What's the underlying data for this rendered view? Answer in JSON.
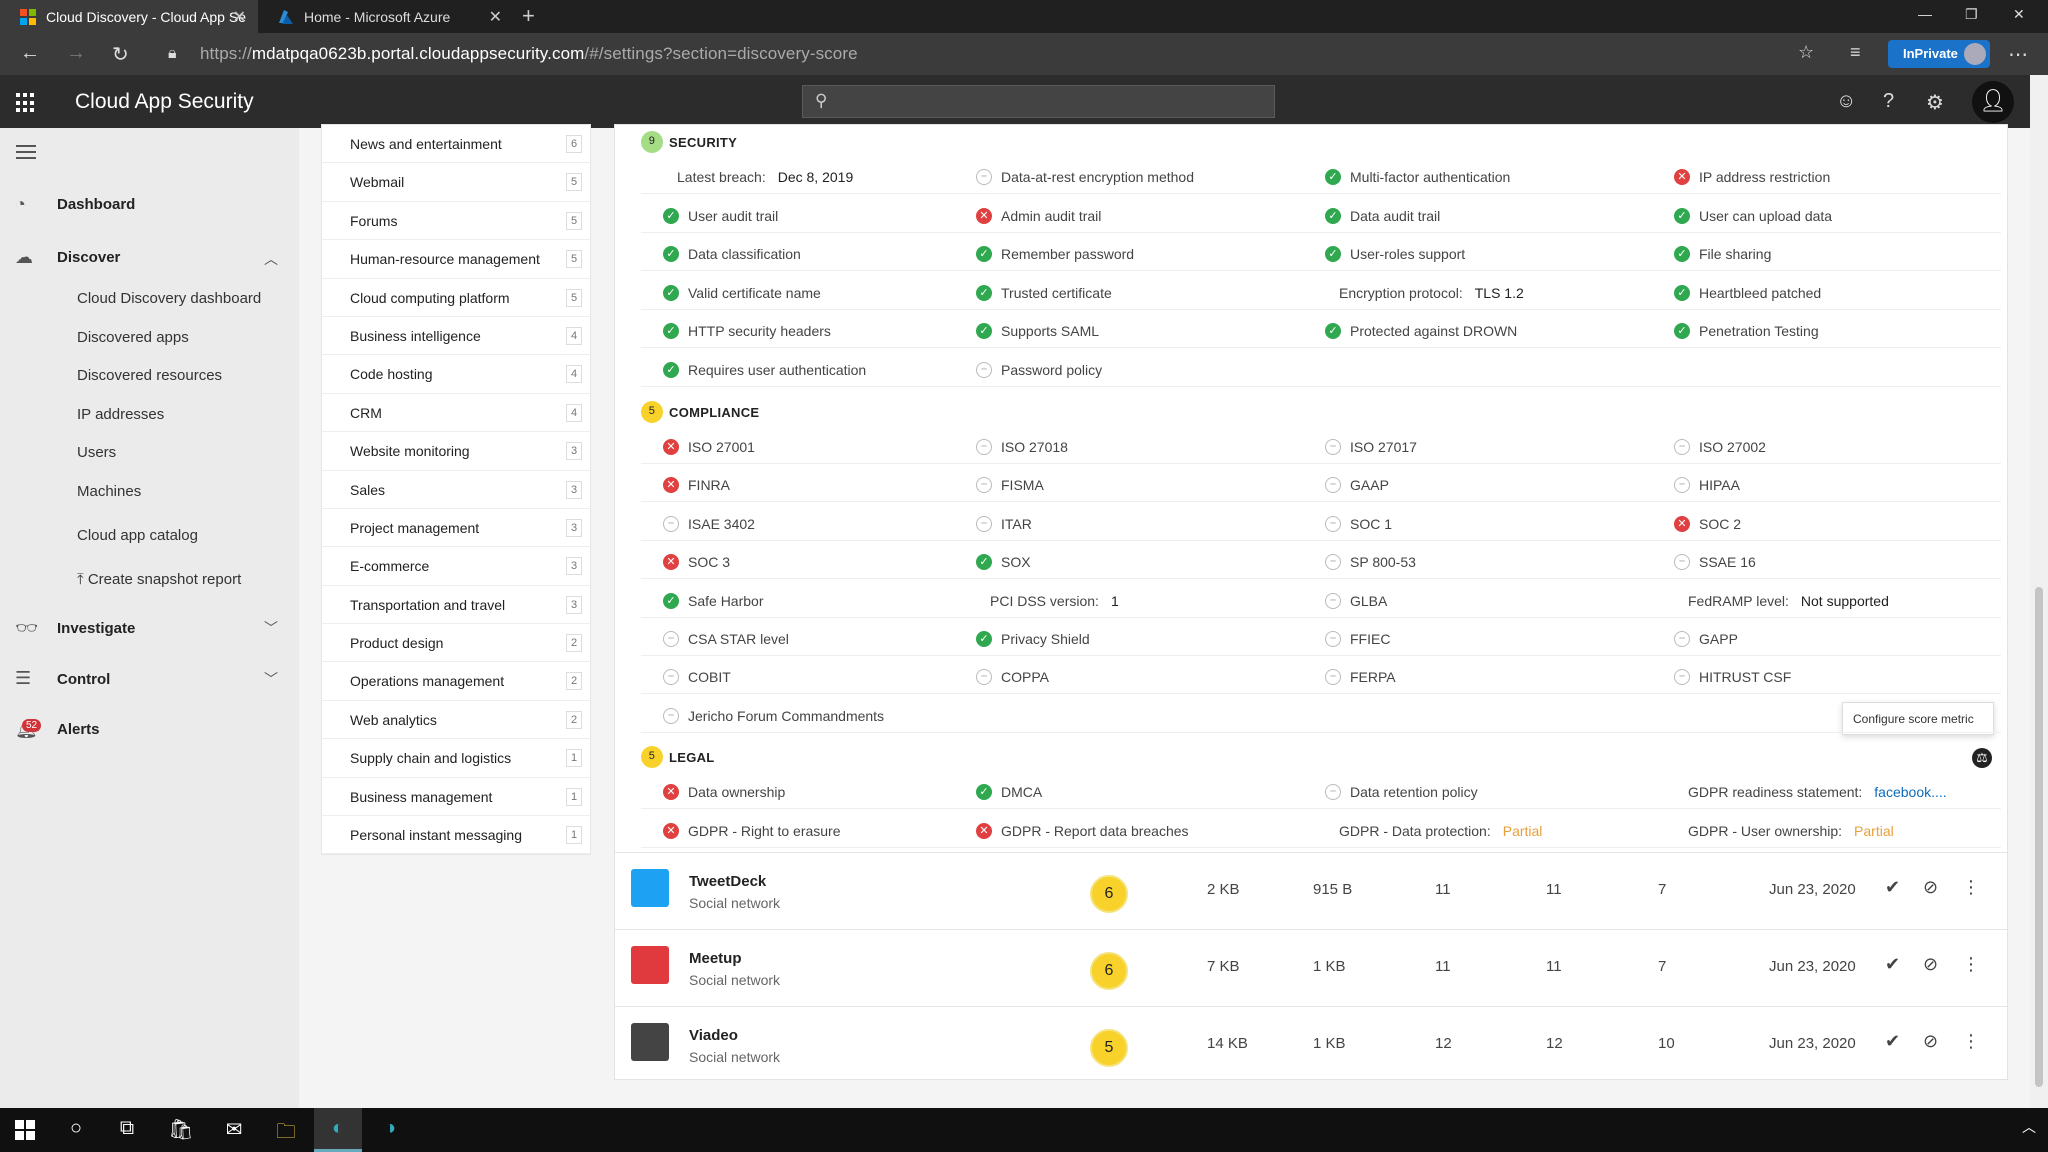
{
  "browser": {
    "tabs": [
      {
        "title": "Cloud Discovery - Cloud App Se",
        "active": true
      },
      {
        "title": "Home - Microsoft Azure",
        "active": false
      }
    ],
    "url_prefix": "https://",
    "url_main": "mdatpqa0623b.portal.cloudappsecurity.com",
    "url_rest": "/#/settings?section=discovery-score",
    "inprivate": "InPrivate"
  },
  "app": {
    "title": "Cloud App Security"
  },
  "leftnav": {
    "dashboard": "Dashboard",
    "discover": "Discover",
    "discover_items": [
      "Cloud Discovery dashboard",
      "Discovered apps",
      "Discovered resources",
      "IP addresses",
      "Users",
      "Machines",
      "Cloud app catalog",
      "Create snapshot report"
    ],
    "investigate": "Investigate",
    "control": "Control",
    "alerts": "Alerts",
    "alerts_count": "52"
  },
  "categories": [
    {
      "name": "News and entertainment",
      "count": "6"
    },
    {
      "name": "Webmail",
      "count": "5"
    },
    {
      "name": "Forums",
      "count": "5"
    },
    {
      "name": "Human-resource management",
      "count": "5"
    },
    {
      "name": "Cloud computing platform",
      "count": "5"
    },
    {
      "name": "Business intelligence",
      "count": "4"
    },
    {
      "name": "Code hosting",
      "count": "4"
    },
    {
      "name": "CRM",
      "count": "4"
    },
    {
      "name": "Website monitoring",
      "count": "3"
    },
    {
      "name": "Sales",
      "count": "3"
    },
    {
      "name": "Project management",
      "count": "3"
    },
    {
      "name": "E-commerce",
      "count": "3"
    },
    {
      "name": "Transportation and travel",
      "count": "3"
    },
    {
      "name": "Product design",
      "count": "2"
    },
    {
      "name": "Operations management",
      "count": "2"
    },
    {
      "name": "Web analytics",
      "count": "2"
    },
    {
      "name": "Supply chain and logistics",
      "count": "1"
    },
    {
      "name": "Business management",
      "count": "1"
    },
    {
      "name": "Personal instant messaging",
      "count": "1"
    }
  ],
  "security": {
    "title": "SECURITY",
    "score": "9",
    "rows": [
      [
        {
          "type": "kv",
          "label": "Latest breach:",
          "value": "Dec 8, 2019"
        },
        {
          "status": "na",
          "label": "Data-at-rest encryption method"
        },
        {
          "status": "ok",
          "label": "Multi-factor authentication"
        },
        {
          "status": "bad",
          "label": "IP address restriction"
        }
      ],
      [
        {
          "status": "ok",
          "label": "User audit trail"
        },
        {
          "status": "bad",
          "label": "Admin audit trail"
        },
        {
          "status": "ok",
          "label": "Data audit trail"
        },
        {
          "status": "ok",
          "label": "User can upload data"
        }
      ],
      [
        {
          "status": "ok",
          "label": "Data classification"
        },
        {
          "status": "ok",
          "label": "Remember password"
        },
        {
          "status": "ok",
          "label": "User-roles support"
        },
        {
          "status": "ok",
          "label": "File sharing"
        }
      ],
      [
        {
          "status": "ok",
          "label": "Valid certificate name"
        },
        {
          "status": "ok",
          "label": "Trusted certificate"
        },
        {
          "type": "kv",
          "label": "Encryption protocol:",
          "value": "TLS 1.2"
        },
        {
          "status": "ok",
          "label": "Heartbleed patched"
        }
      ],
      [
        {
          "status": "ok",
          "label": "HTTP security headers"
        },
        {
          "status": "ok",
          "label": "Supports SAML"
        },
        {
          "status": "ok",
          "label": "Protected against DROWN"
        },
        {
          "status": "ok",
          "label": "Penetration Testing"
        }
      ],
      [
        {
          "status": "ok",
          "label": "Requires user authentication"
        },
        {
          "status": "na",
          "label": "Password policy"
        }
      ]
    ]
  },
  "compliance": {
    "title": "COMPLIANCE",
    "score": "5",
    "rows": [
      [
        {
          "status": "bad",
          "label": "ISO 27001"
        },
        {
          "status": "na",
          "label": "ISO 27018"
        },
        {
          "status": "na",
          "label": "ISO 27017"
        },
        {
          "status": "na",
          "label": "ISO 27002"
        }
      ],
      [
        {
          "status": "bad",
          "label": "FINRA"
        },
        {
          "status": "na",
          "label": "FISMA"
        },
        {
          "status": "na",
          "label": "GAAP"
        },
        {
          "status": "na",
          "label": "HIPAA"
        }
      ],
      [
        {
          "status": "na",
          "label": "ISAE 3402"
        },
        {
          "status": "na",
          "label": "ITAR"
        },
        {
          "status": "na",
          "label": "SOC 1"
        },
        {
          "status": "bad",
          "label": "SOC 2"
        }
      ],
      [
        {
          "status": "bad",
          "label": "SOC 3"
        },
        {
          "status": "ok",
          "label": "SOX"
        },
        {
          "status": "na",
          "label": "SP 800-53"
        },
        {
          "status": "na",
          "label": "SSAE 16"
        }
      ],
      [
        {
          "status": "ok",
          "label": "Safe Harbor"
        },
        {
          "type": "kv",
          "label": "PCI DSS version:",
          "value": "1"
        },
        {
          "status": "na",
          "label": "GLBA"
        },
        {
          "type": "kv",
          "label": "FedRAMP level:",
          "value": "Not supported"
        }
      ],
      [
        {
          "status": "na",
          "label": "CSA STAR level"
        },
        {
          "status": "ok",
          "label": "Privacy Shield"
        },
        {
          "status": "na",
          "label": "FFIEC"
        },
        {
          "status": "na",
          "label": "GAPP"
        }
      ],
      [
        {
          "status": "na",
          "label": "COBIT"
        },
        {
          "status": "na",
          "label": "COPPA"
        },
        {
          "status": "na",
          "label": "FERPA"
        },
        {
          "status": "na",
          "label": "HITRUST CSF"
        }
      ],
      [
        {
          "status": "na",
          "label": "Jericho Forum Commandments"
        }
      ]
    ]
  },
  "legal": {
    "title": "LEGAL",
    "score": "5",
    "rows": [
      [
        {
          "status": "bad",
          "label": "Data ownership"
        },
        {
          "status": "ok",
          "label": "DMCA"
        },
        {
          "status": "na",
          "label": "Data retention policy"
        },
        {
          "type": "kv",
          "label": "GDPR readiness statement:",
          "value": "facebook....",
          "style": "link"
        }
      ],
      [
        {
          "status": "bad",
          "label": "GDPR - Right to erasure"
        },
        {
          "status": "bad",
          "label": "GDPR - Report data breaches"
        },
        {
          "type": "kv",
          "label": "GDPR - Data protection:",
          "value": "Partial",
          "style": "orange"
        },
        {
          "type": "kv",
          "label": "GDPR - User ownership:",
          "value": "Partial",
          "style": "orange"
        }
      ]
    ]
  },
  "tooltip": "Configure score metric",
  "apps": [
    {
      "name": "TweetDeck",
      "category": "Social network",
      "score": "6",
      "traffic": "2 KB",
      "upload": "915 B",
      "c1": "11",
      "c2": "11",
      "c3": "7",
      "date": "Jun 23, 2020",
      "logo_color": "#1da1f2"
    },
    {
      "name": "Meetup",
      "category": "Social network",
      "score": "6",
      "traffic": "7 KB",
      "upload": "1 KB",
      "c1": "11",
      "c2": "11",
      "c3": "7",
      "date": "Jun 23, 2020",
      "logo_color": "#e0393e"
    },
    {
      "name": "Viadeo",
      "category": "Social network",
      "score": "5",
      "traffic": "14 KB",
      "upload": "1 KB",
      "c1": "12",
      "c2": "12",
      "c3": "10",
      "date": "Jun 23, 2020",
      "logo_color": "#444"
    }
  ]
}
